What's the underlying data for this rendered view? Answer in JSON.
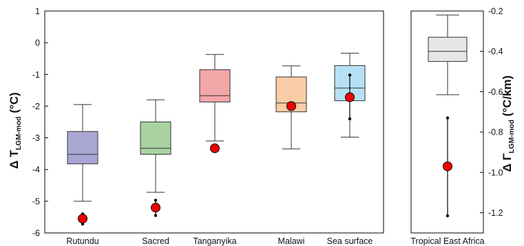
{
  "chart_data": [
    {
      "type": "box",
      "ylabel": {
        "main": "Δ T",
        "sub": "LGM-mod",
        "unit": " (°C)"
      },
      "ylim": [
        -6,
        1
      ],
      "yticks": [
        "1",
        "0",
        "-1",
        "-2",
        "-3",
        "-4",
        "-5",
        "-6"
      ],
      "categories": [
        "Rutundu",
        "Sacred",
        "Tanganyika",
        "Malawi",
        "Sea surface"
      ],
      "boxes": [
        {
          "name": "Rutundu",
          "color": "#a9a6d3",
          "whisker_low": -5.0,
          "q1": -3.82,
          "median": -3.52,
          "q3": -2.8,
          "whisker_high": -1.95
        },
        {
          "name": "Sacred",
          "color": "#a9d3a0",
          "whisker_low": -4.72,
          "q1": -3.52,
          "median": -3.33,
          "q3": -2.5,
          "whisker_high": -1.8
        },
        {
          "name": "Tanganyika",
          "color": "#f2a6a8",
          "whisker_low": -3.1,
          "q1": -1.87,
          "median": -1.67,
          "q3": -0.85,
          "whisker_high": -0.37
        },
        {
          "name": "Malawi",
          "color": "#f9cca6",
          "whisker_low": -3.35,
          "q1": -2.18,
          "median": -1.9,
          "q3": -1.08,
          "whisker_high": -0.73
        },
        {
          "name": "Sea surface",
          "color": "#b6e0f5",
          "whisker_low": -2.98,
          "q1": -1.83,
          "median": -1.43,
          "q3": -0.72,
          "whisker_high": -0.33
        }
      ],
      "proxies": [
        {
          "name": "Rutundu",
          "value": -5.55,
          "error_low": -5.72,
          "error_high": -5.4
        },
        {
          "name": "Sacred",
          "value": -5.2,
          "error_low": -5.45,
          "error_high": -4.97
        },
        {
          "name": "Tanganyika",
          "value": -3.33,
          "error_low": null,
          "error_high": null
        },
        {
          "name": "Malawi",
          "value": -2.0,
          "error_low": null,
          "error_high": null
        },
        {
          "name": "Sea surface",
          "value": -1.72,
          "error_low": -2.4,
          "error_high": -1.02
        }
      ],
      "grid": false
    },
    {
      "type": "box",
      "ylabel": {
        "main": "Δ Γ",
        "sub": "LGM-mod",
        "unit": " (°C/km)"
      },
      "ylim": [
        -1.3,
        -0.2
      ],
      "yticks": [
        "-0.2",
        "-0.4",
        "-0.6",
        "-0.8",
        "-1.0",
        "-1.2"
      ],
      "categories": [
        "Tropical East Africa"
      ],
      "boxes": [
        {
          "name": "Tropical East Africa",
          "color": "#e6e6e6",
          "whisker_low": -0.615,
          "q1": -0.45,
          "median": -0.4,
          "q3": -0.33,
          "whisker_high": -0.22
        }
      ],
      "proxies": [
        {
          "name": "Tropical East Africa",
          "value": -0.97,
          "error_low": -1.215,
          "error_high": -0.73
        }
      ],
      "grid": false
    }
  ]
}
